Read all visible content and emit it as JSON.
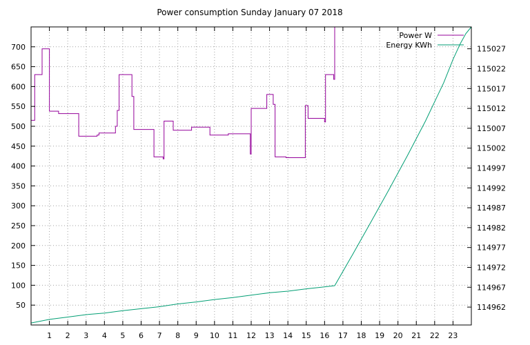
{
  "chart_data": {
    "type": "line",
    "title": "Power consumption Sunday January 07 2018",
    "x": {
      "range": [
        0,
        24
      ],
      "ticks": [
        1,
        2,
        3,
        4,
        5,
        6,
        7,
        8,
        9,
        10,
        11,
        12,
        13,
        14,
        15,
        16,
        17,
        18,
        19,
        20,
        21,
        22,
        23
      ]
    },
    "y_left": {
      "range": [
        0,
        750
      ],
      "ticks": [
        50,
        100,
        150,
        200,
        250,
        300,
        350,
        400,
        450,
        500,
        550,
        600,
        650,
        700
      ]
    },
    "y_right": {
      "range": [
        114957.5,
        115032.5
      ],
      "ticks": [
        114962,
        114967,
        114972,
        114977,
        114982,
        114987,
        114992,
        114997,
        115002,
        115007,
        115012,
        115017,
        115022,
        115027
      ]
    },
    "grid": true,
    "legend_position": "top-right",
    "colors": {
      "power": "#94009a",
      "energy": "#009e73"
    },
    "series": [
      {
        "name": "Power W",
        "axis": "left",
        "step": true,
        "points": [
          [
            0.0,
            515
          ],
          [
            0.2,
            630
          ],
          [
            0.6,
            695
          ],
          [
            1.0,
            538
          ],
          [
            1.5,
            532
          ],
          [
            2.6,
            475
          ],
          [
            3.6,
            478
          ],
          [
            3.7,
            483
          ],
          [
            4.6,
            500
          ],
          [
            4.7,
            540
          ],
          [
            4.8,
            630
          ],
          [
            5.5,
            575
          ],
          [
            5.6,
            492
          ],
          [
            6.7,
            423
          ],
          [
            7.2,
            418
          ],
          [
            7.25,
            513
          ],
          [
            7.75,
            490
          ],
          [
            8.75,
            498
          ],
          [
            9.75,
            478
          ],
          [
            10.75,
            481
          ],
          [
            11.95,
            430
          ],
          [
            12.0,
            545
          ],
          [
            12.85,
            580
          ],
          [
            13.2,
            555
          ],
          [
            13.3,
            423
          ],
          [
            13.9,
            421
          ],
          [
            14.95,
            552
          ],
          [
            15.1,
            520
          ],
          [
            16.0,
            511
          ],
          [
            16.05,
            630
          ],
          [
            16.5,
            618
          ],
          [
            16.55,
            750
          ]
        ]
      },
      {
        "name": "Energy KWh",
        "axis": "right",
        "step": false,
        "points": [
          [
            0.0,
            114958.0
          ],
          [
            1.0,
            114958.9
          ],
          [
            2.0,
            114959.5
          ],
          [
            3.0,
            114960.1
          ],
          [
            4.0,
            114960.5
          ],
          [
            5.0,
            114961.1
          ],
          [
            6.0,
            114961.6
          ],
          [
            7.0,
            114962.1
          ],
          [
            8.0,
            114962.8
          ],
          [
            9.0,
            114963.3
          ],
          [
            10.0,
            114963.9
          ],
          [
            11.0,
            114964.4
          ],
          [
            12.0,
            114965.0
          ],
          [
            13.0,
            114965.6
          ],
          [
            14.0,
            114966.0
          ],
          [
            15.0,
            114966.6
          ],
          [
            16.0,
            114967.1
          ],
          [
            16.55,
            114967.4
          ],
          [
            17.5,
            114975.0
          ],
          [
            18.5,
            114983.2
          ],
          [
            19.5,
            114991.5
          ],
          [
            20.5,
            115000.0
          ],
          [
            21.5,
            115008.8
          ],
          [
            22.5,
            115018.5
          ],
          [
            23.0,
            115024.3
          ],
          [
            23.4,
            115028.3
          ],
          [
            23.7,
            115030.8
          ],
          [
            24.0,
            115032.5
          ]
        ]
      }
    ]
  }
}
